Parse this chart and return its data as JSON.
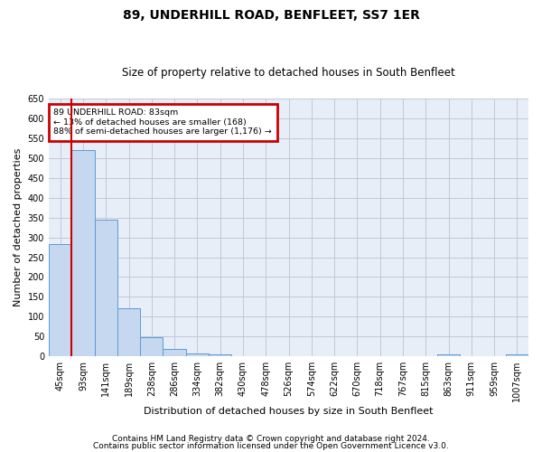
{
  "title": "89, UNDERHILL ROAD, BENFLEET, SS7 1ER",
  "subtitle": "Size of property relative to detached houses in South Benfleet",
  "xlabel": "Distribution of detached houses by size in South Benfleet",
  "ylabel": "Number of detached properties",
  "footnote1": "Contains HM Land Registry data © Crown copyright and database right 2024.",
  "footnote2": "Contains public sector information licensed under the Open Government Licence v3.0.",
  "annotation_line1": "89 UNDERHILL ROAD: 83sqm",
  "annotation_line2": "← 13% of detached houses are smaller (168)",
  "annotation_line3": "88% of semi-detached houses are larger (1,176) →",
  "bar_categories": [
    "45sqm",
    "93sqm",
    "141sqm",
    "189sqm",
    "238sqm",
    "286sqm",
    "334sqm",
    "382sqm",
    "430sqm",
    "478sqm",
    "526sqm",
    "574sqm",
    "622sqm",
    "670sqm",
    "718sqm",
    "767sqm",
    "815sqm",
    "863sqm",
    "911sqm",
    "959sqm",
    "1007sqm"
  ],
  "bar_values": [
    283,
    521,
    345,
    121,
    48,
    18,
    8,
    4,
    0,
    0,
    0,
    0,
    0,
    0,
    0,
    0,
    0,
    5,
    0,
    0,
    5
  ],
  "bar_color": "#c5d8f0",
  "bar_edge_color": "#5b9bd5",
  "vline_color": "#cc0000",
  "annotation_box_color": "#cc0000",
  "ylim": [
    0,
    650
  ],
  "yticks": [
    0,
    50,
    100,
    150,
    200,
    250,
    300,
    350,
    400,
    450,
    500,
    550,
    600,
    650
  ],
  "grid_color": "#c0c8d8",
  "bg_color": "#e8eef8",
  "title_fontsize": 10,
  "subtitle_fontsize": 8.5,
  "tick_fontsize": 7,
  "label_fontsize": 8,
  "footnote_fontsize": 6.5
}
